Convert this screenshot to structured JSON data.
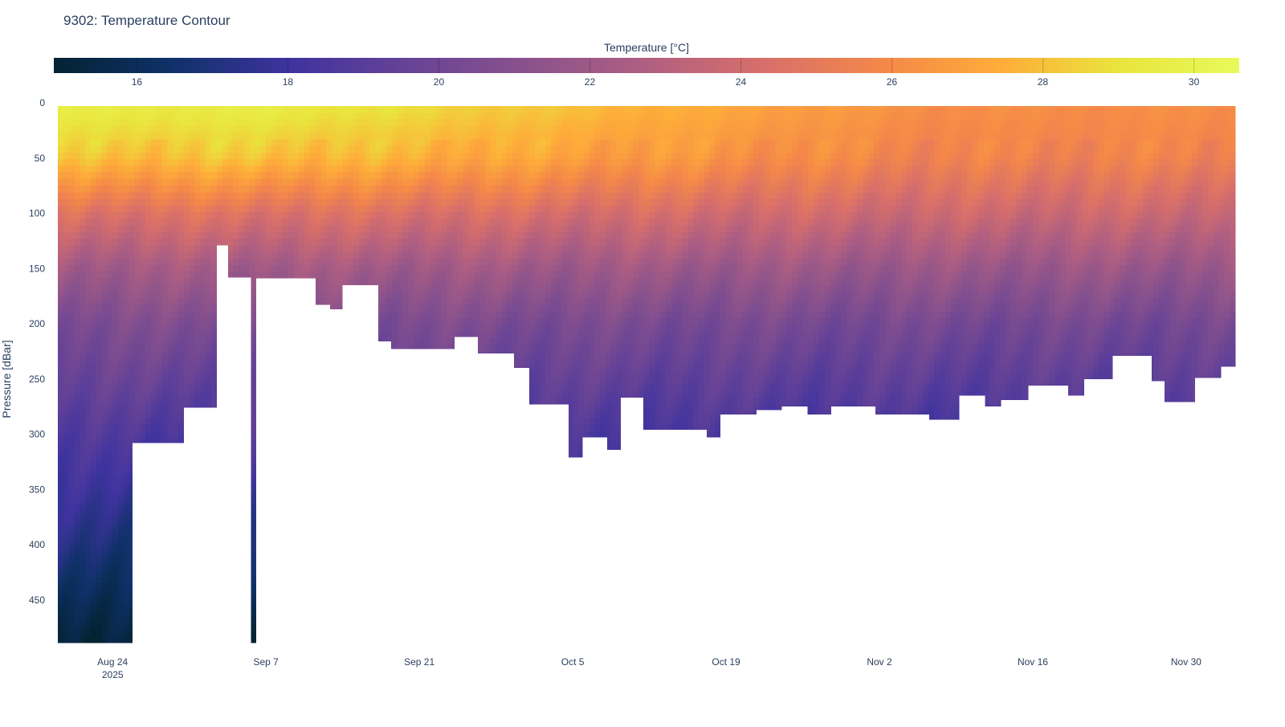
{
  "chart_data": {
    "type": "heatmap",
    "subtype": "contour",
    "title": "9302: Temperature Contour",
    "xlabel": "",
    "ylabel": "Pressure [dBar]",
    "colorbar": {
      "title": "Temperature [°C]",
      "range": [
        14.9,
        30.6
      ],
      "ticks": [
        16,
        18,
        20,
        22,
        24,
        26,
        28,
        30
      ],
      "tick_labels": [
        "16",
        "18",
        "20",
        "22",
        "24",
        "26",
        "28",
        "30"
      ],
      "colorscale": [
        "#032333",
        "#0f3169",
        "#3f339f",
        "#674396",
        "#8a528c",
        "#b05f81",
        "#d86f6a",
        "#f48849",
        "#fead39",
        "#e9e53d",
        "#e8fa5b"
      ]
    },
    "x_origin_date": "2025-08-19",
    "x_range_days": [
      0,
      107.5
    ],
    "x_ticks": [
      {
        "day": 5,
        "label": "Aug 24",
        "sub": "2025"
      },
      {
        "day": 19,
        "label": "Sep 7",
        "sub": ""
      },
      {
        "day": 33,
        "label": "Sep 21",
        "sub": ""
      },
      {
        "day": 47,
        "label": "Oct 5",
        "sub": ""
      },
      {
        "day": 61,
        "label": "Oct 19",
        "sub": ""
      },
      {
        "day": 75,
        "label": "Nov 2",
        "sub": ""
      },
      {
        "day": 89,
        "label": "Nov 16",
        "sub": ""
      },
      {
        "day": 103,
        "label": "Nov 30",
        "sub": ""
      }
    ],
    "y_range": [
      489,
      3
    ],
    "y_ticks": [
      0,
      50,
      100,
      150,
      200,
      250,
      300,
      350,
      400,
      450
    ],
    "y_tick_labels": [
      "0",
      "50",
      "100",
      "150",
      "200",
      "250",
      "300",
      "350",
      "400",
      "450"
    ],
    "profile_pressures": [
      0,
      50,
      100,
      150,
      200,
      250,
      300,
      400,
      490
    ],
    "profile_early_temps": [
      29.6,
      28.0,
      24.6,
      22.2,
      20.6,
      19.6,
      18.6,
      17.0,
      15.3
    ],
    "profile_late_temps": [
      26.2,
      25.6,
      23.8,
      21.8,
      20.2,
      19.2,
      18.3,
      17.0,
      15.5
    ],
    "max_pressure_segments": [
      [
        0,
        6.8,
        489
      ],
      [
        6.8,
        11.5,
        308
      ],
      [
        11.5,
        14.5,
        276
      ],
      [
        14.5,
        15.5,
        129
      ],
      [
        15.5,
        17.6,
        158
      ],
      [
        17.6,
        18.1,
        489
      ],
      [
        18.1,
        23.5,
        159
      ],
      [
        23.5,
        24.8,
        183
      ],
      [
        24.8,
        26.0,
        187
      ],
      [
        26.0,
        29.2,
        165
      ],
      [
        29.2,
        30.4,
        216
      ],
      [
        30.4,
        36.2,
        223
      ],
      [
        36.2,
        38.3,
        212
      ],
      [
        38.3,
        41.6,
        227
      ],
      [
        41.6,
        43.0,
        240
      ],
      [
        43.0,
        46.6,
        273
      ],
      [
        46.6,
        47.9,
        321
      ],
      [
        47.9,
        50.1,
        303
      ],
      [
        50.1,
        51.4,
        314
      ],
      [
        51.4,
        53.4,
        267
      ],
      [
        53.4,
        59.2,
        296
      ],
      [
        59.2,
        60.5,
        303
      ],
      [
        60.5,
        63.8,
        282
      ],
      [
        63.8,
        66.1,
        278
      ],
      [
        66.1,
        68.4,
        275
      ],
      [
        68.4,
        70.6,
        282
      ],
      [
        70.6,
        74.6,
        275
      ],
      [
        74.6,
        79.5,
        282
      ],
      [
        79.5,
        82.3,
        287
      ],
      [
        82.3,
        84.6,
        265
      ],
      [
        84.6,
        86.1,
        275
      ],
      [
        86.1,
        88.6,
        269
      ],
      [
        88.6,
        92.2,
        256
      ],
      [
        92.2,
        93.7,
        265
      ],
      [
        93.7,
        96.3,
        250
      ],
      [
        96.3,
        99.8,
        229
      ],
      [
        99.8,
        101.0,
        252
      ],
      [
        101.0,
        103.8,
        271
      ],
      [
        103.8,
        106.2,
        249
      ],
      [
        106.2,
        107.5,
        239
      ]
    ]
  }
}
